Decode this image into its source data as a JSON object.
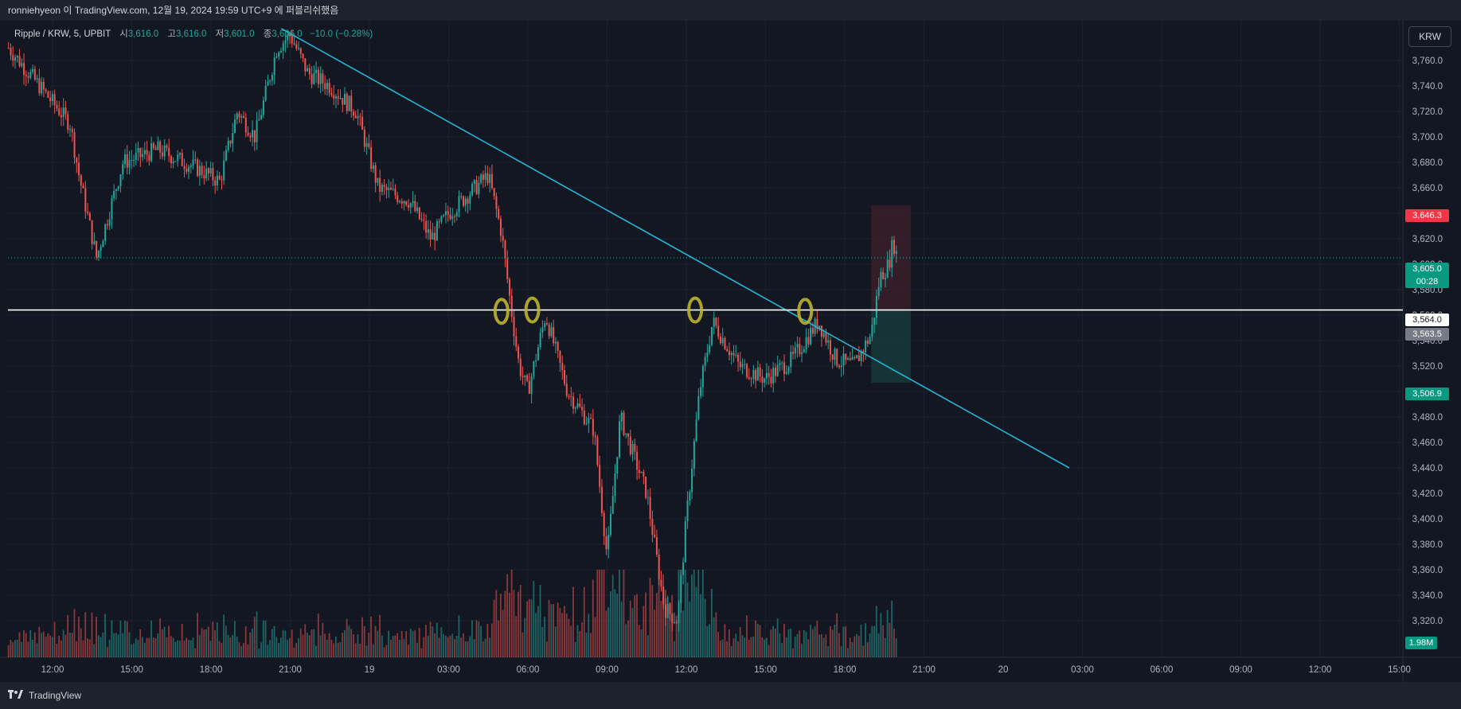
{
  "header": {
    "title": "ronniehyeon 이 TradingView.com, 12월 19, 2024 19:59 UTC+9 에 퍼블리쉬했음"
  },
  "legend": {
    "symbol": "Ripple / KRW, 5, UPBIT",
    "open_label": "시",
    "open": "3,616.0",
    "high_label": "고",
    "high": "3,616.0",
    "low_label": "저",
    "low": "3,601.0",
    "close_label": "종",
    "close": "3,606.0",
    "change": "−10.0 (−0.28%)"
  },
  "currency_button": "KRW",
  "footer": {
    "brand": "TradingView"
  },
  "colors": {
    "background": "#131722",
    "up": "#26a69a",
    "down": "#ef5350",
    "trendline": "#26b5d4",
    "support": "#ffffff",
    "marker": "#bdb22d",
    "stop_zone": "#3a1f2a",
    "target_zone": "#173a3a"
  },
  "price_tags": {
    "stop": "3,646.3",
    "current": "3,605.0",
    "countdown": "00:28",
    "support": "3,564.0",
    "entry": "3,563.5",
    "target": "3,506.9",
    "volume": "1.98M"
  },
  "chart_data": {
    "type": "candlestick",
    "symbol": "Ripple / KRW",
    "interval": "5",
    "exchange": "UPBIT",
    "y_axis": {
      "ylim": [
        3308,
        3790
      ],
      "ticks": [
        "3,760.0",
        "3,740.0",
        "3,720.0",
        "3,700.0",
        "3,680.0",
        "3,660.0",
        "3,640.0",
        "3,620.0",
        "3,600.0",
        "3,580.0",
        "3,560.0",
        "3,540.0",
        "3,520.0",
        "3,500.0",
        "3,480.0",
        "3,460.0",
        "3,440.0",
        "3,420.0",
        "3,400.0",
        "3,380.0",
        "3,360.0",
        "3,340.0",
        "3,320.0"
      ]
    },
    "x_axis": {
      "ticks": [
        "12:00",
        "15:00",
        "18:00",
        "21:00",
        "19",
        "03:00",
        "06:00",
        "09:00",
        "12:00",
        "15:00",
        "18:00",
        "21:00",
        "20",
        "03:00",
        "06:00",
        "09:00",
        "12:00",
        "15:00"
      ]
    },
    "price_path": [
      {
        "t": "12/18 10:20",
        "price": 3770
      },
      {
        "t": "12/18 11:30",
        "price": 3740
      },
      {
        "t": "12/18 12:40",
        "price": 3710
      },
      {
        "t": "12/18 13:00",
        "price": 3670
      },
      {
        "t": "12/18 13:40",
        "price": 3605
      },
      {
        "t": "12/18 14:40",
        "price": 3680
      },
      {
        "t": "12/18 16:00",
        "price": 3690
      },
      {
        "t": "12/18 17:30",
        "price": 3675
      },
      {
        "t": "12/18 18:20",
        "price": 3665
      },
      {
        "t": "12/18 19:00",
        "price": 3720
      },
      {
        "t": "12/18 19:40",
        "price": 3700
      },
      {
        "t": "12/18 20:30",
        "price": 3770
      },
      {
        "t": "12/18 21:00",
        "price": 3780
      },
      {
        "t": "12/18 21:40",
        "price": 3750
      },
      {
        "t": "12/18 22:30",
        "price": 3740
      },
      {
        "t": "12/18 23:30",
        "price": 3720
      },
      {
        "t": "12/19 00:20",
        "price": 3660
      },
      {
        "t": "12/19 01:30",
        "price": 3650
      },
      {
        "t": "12/19 02:20",
        "price": 3620
      },
      {
        "t": "12/19 03:00",
        "price": 3640
      },
      {
        "t": "12/19 04:00",
        "price": 3660
      },
      {
        "t": "12/19 04:30",
        "price": 3670
      },
      {
        "t": "12/19 05:00",
        "price": 3625
      },
      {
        "t": "12/19 05:20",
        "price": 3570
      },
      {
        "t": "12/19 05:40",
        "price": 3520
      },
      {
        "t": "12/19 06:00",
        "price": 3500
      },
      {
        "t": "12/19 06:40",
        "price": 3560
      },
      {
        "t": "12/19 07:30",
        "price": 3500
      },
      {
        "t": "12/19 08:30",
        "price": 3470
      },
      {
        "t": "12/19 09:00",
        "price": 3370
      },
      {
        "t": "12/19 09:30",
        "price": 3480
      },
      {
        "t": "12/19 10:30",
        "price": 3420
      },
      {
        "t": "12/19 11:10",
        "price": 3330
      },
      {
        "t": "12/19 11:40",
        "price": 3320
      },
      {
        "t": "12/19 12:00",
        "price": 3400
      },
      {
        "t": "12/19 12:30",
        "price": 3500
      },
      {
        "t": "12/19 13:00",
        "price": 3555
      },
      {
        "t": "12/19 14:00",
        "price": 3520
      },
      {
        "t": "12/19 15:00",
        "price": 3510
      },
      {
        "t": "12/19 16:00",
        "price": 3525
      },
      {
        "t": "12/19 17:00",
        "price": 3555
      },
      {
        "t": "12/19 17:40",
        "price": 3525
      },
      {
        "t": "12/19 18:20",
        "price": 3520
      },
      {
        "t": "12/19 19:00",
        "price": 3545
      },
      {
        "t": "12/19 19:20",
        "price": 3590
      },
      {
        "t": "12/19 19:40",
        "price": 3600
      },
      {
        "t": "12/19 19:50",
        "price": 3618
      },
      {
        "t": "12/19 19:59",
        "price": 3606
      }
    ],
    "trendline": {
      "from": {
        "t": "12/18 20:40",
        "price": 3785
      },
      "to": {
        "t": "12/20 02:30",
        "price": 3440
      }
    },
    "horizontal_line": 3564.0,
    "markers": [
      {
        "t": "12/19 05:00",
        "price": 3563
      },
      {
        "t": "12/19 06:10",
        "price": 3564
      },
      {
        "t": "12/19 12:20",
        "price": 3564
      },
      {
        "t": "12/19 16:30",
        "price": 3563
      }
    ],
    "position": {
      "entry": 3563.5,
      "stop": 3646.3,
      "target": 3506.9,
      "start": "12/19 19:00",
      "end": "12/19 20:30"
    },
    "volume_last": "1.98M"
  }
}
